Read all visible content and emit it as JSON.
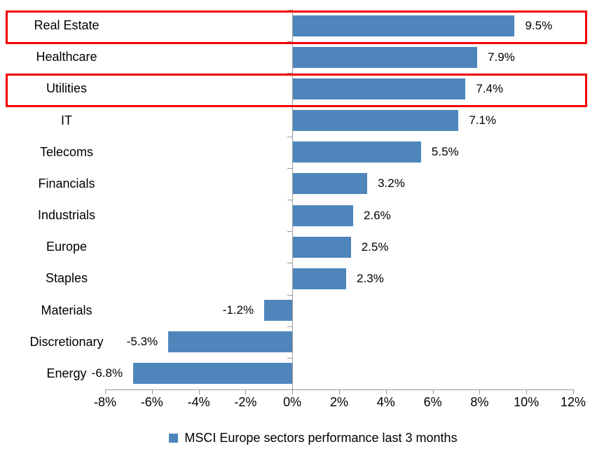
{
  "chart_data": {
    "type": "bar",
    "orientation": "horizontal",
    "title": "",
    "categories": [
      "Real Estate",
      "Healthcare",
      "Utilities",
      "IT",
      "Telecoms",
      "Financials",
      "Industrials",
      "Europe",
      "Staples",
      "Materials",
      "Discretionary",
      "Energy"
    ],
    "values": [
      9.5,
      7.9,
      7.4,
      7.1,
      5.5,
      3.2,
      2.6,
      2.5,
      2.3,
      -1.2,
      -5.3,
      -6.8
    ],
    "value_labels": [
      "9.5%",
      "7.9%",
      "7.4%",
      "7.1%",
      "5.5%",
      "3.2%",
      "2.6%",
      "2.5%",
      "2.3%",
      "-1.2%",
      "-5.3%",
      "-6.8%"
    ],
    "xlabel": "",
    "ylabel": "",
    "xlim": [
      -8,
      12
    ],
    "x_tick_values": [
      -8,
      -6,
      -4,
      -2,
      0,
      2,
      4,
      6,
      8,
      10,
      12
    ],
    "x_ticks": [
      "-8%",
      "-6%",
      "-4%",
      "-2%",
      "0%",
      "2%",
      "4%",
      "6%",
      "8%",
      "10%",
      "12%"
    ],
    "grid": "off",
    "legend_position": "bottom",
    "legend_label": "MSCI Europe sectors performance last 3 months",
    "highlighted_categories": [
      "Real Estate",
      "Utilities"
    ],
    "colors": {
      "bar": "#4E86BC",
      "axis": "#9B9B9B",
      "highlight": "#F40000",
      "text": "#000000",
      "background": "#FFFFFF"
    }
  }
}
